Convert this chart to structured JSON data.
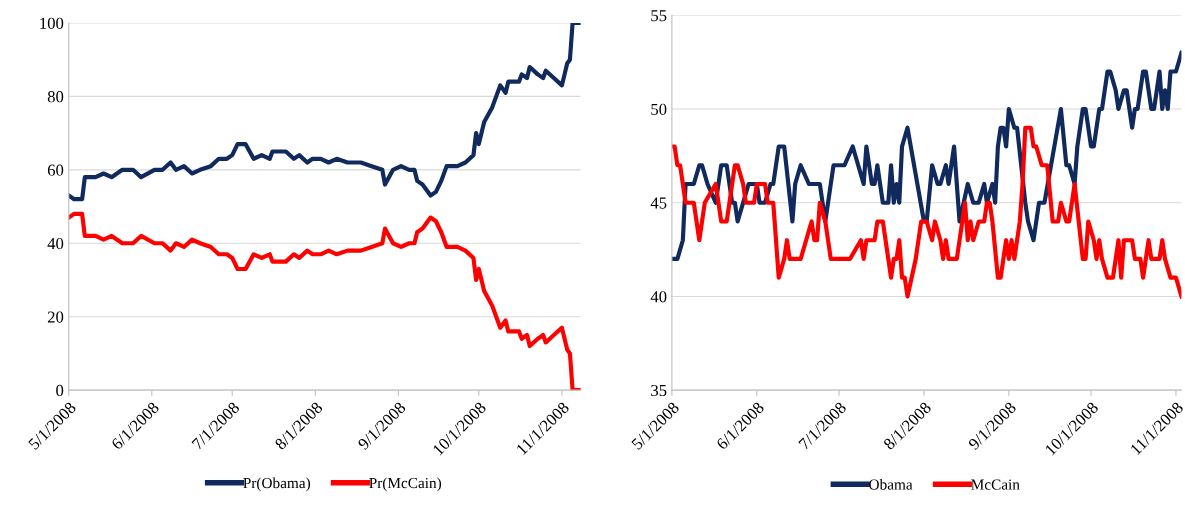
{
  "chart_data": [
    {
      "type": "line",
      "legend": "bottom",
      "grid": "y",
      "line_style": "solid",
      "marker": "none",
      "xlim": [
        "2008-05-01",
        "2008-11-08"
      ],
      "ylim": [
        0,
        100
      ],
      "yticks": [
        0,
        20,
        40,
        60,
        80,
        100
      ],
      "xticks": [
        {
          "value": "2008-05-01",
          "label": "5/1/2008"
        },
        {
          "value": "2008-06-01",
          "label": "6/1/2008"
        },
        {
          "value": "2008-07-01",
          "label": "7/1/2008"
        },
        {
          "value": "2008-08-01",
          "label": "8/1/2008"
        },
        {
          "value": "2008-09-01",
          "label": "9/1/2008"
        },
        {
          "value": "2008-10-01",
          "label": "10/1/2008"
        },
        {
          "value": "2008-11-01",
          "label": "11/1/2008"
        }
      ],
      "x": [
        "2008-05-01",
        "2008-05-03",
        "2008-05-05",
        "2008-05-06",
        "2008-05-07",
        "2008-05-10",
        "2008-05-11",
        "2008-05-14",
        "2008-05-17",
        "2008-05-21",
        "2008-05-25",
        "2008-05-28",
        "2008-06-02",
        "2008-06-05",
        "2008-06-08",
        "2008-06-10",
        "2008-06-13",
        "2008-06-16",
        "2008-06-19",
        "2008-06-23",
        "2008-06-26",
        "2008-06-29",
        "2008-07-01",
        "2008-07-03",
        "2008-07-06",
        "2008-07-09",
        "2008-07-12",
        "2008-07-15",
        "2008-07-16",
        "2008-07-21",
        "2008-07-24",
        "2008-07-26",
        "2008-07-29",
        "2008-07-31",
        "2008-08-03",
        "2008-08-06",
        "2008-08-09",
        "2008-08-13",
        "2008-08-18",
        "2008-08-22",
        "2008-08-26",
        "2008-08-27",
        "2008-08-30",
        "2008-09-02",
        "2008-09-05",
        "2008-09-07",
        "2008-09-08",
        "2008-09-10",
        "2008-09-13",
        "2008-09-15",
        "2008-09-17",
        "2008-09-19",
        "2008-09-23",
        "2008-09-26",
        "2008-09-29",
        "2008-09-30",
        "2008-10-01",
        "2008-10-03",
        "2008-10-06",
        "2008-10-09",
        "2008-10-11",
        "2008-10-12",
        "2008-10-16",
        "2008-10-17",
        "2008-10-19",
        "2008-10-20",
        "2008-10-23",
        "2008-10-25",
        "2008-10-26",
        "2008-10-29",
        "2008-11-01",
        "2008-11-03",
        "2008-11-04",
        "2008-11-05",
        "2008-11-08"
      ],
      "series": [
        {
          "name": "Pr(Obama)",
          "color": "#102a5e",
          "values": [
            53,
            52,
            52,
            52,
            58,
            58,
            58,
            59,
            58,
            60,
            60,
            58,
            60,
            60,
            62,
            60,
            61,
            59,
            60,
            61,
            63,
            63,
            64,
            67,
            67,
            63,
            64,
            63,
            65,
            65,
            63,
            64,
            62,
            63,
            63,
            62,
            63,
            62,
            62,
            61,
            60,
            56,
            60,
            61,
            60,
            60,
            57,
            56,
            53,
            54,
            57,
            61,
            61,
            62,
            64,
            70,
            67,
            73,
            77,
            83,
            81,
            84,
            84,
            86,
            85,
            88,
            86,
            85,
            87,
            85,
            83,
            89,
            90,
            100,
            100
          ]
        },
        {
          "name": "Pr(McCain)",
          "color": "#ff0000",
          "values": [
            47,
            48,
            48,
            48,
            42,
            42,
            42,
            41,
            42,
            40,
            40,
            42,
            40,
            40,
            38,
            40,
            39,
            41,
            40,
            39,
            37,
            37,
            36,
            33,
            33,
            37,
            36,
            37,
            35,
            35,
            37,
            36,
            38,
            37,
            37,
            38,
            37,
            38,
            38,
            39,
            40,
            44,
            40,
            39,
            40,
            40,
            43,
            44,
            47,
            46,
            43,
            39,
            39,
            38,
            36,
            30,
            33,
            27,
            23,
            17,
            19,
            16,
            16,
            14,
            15,
            12,
            14,
            15,
            13,
            15,
            17,
            11,
            10,
            0,
            0
          ]
        }
      ]
    },
    {
      "type": "line",
      "legend": "bottom",
      "grid": "y",
      "line_style": "solid",
      "marker": "none",
      "xlim": [
        "2008-05-01",
        "2008-11-03"
      ],
      "ylim": [
        35,
        55
      ],
      "yticks": [
        35,
        40,
        45,
        50,
        55
      ],
      "xticks": [
        {
          "value": "2008-05-01",
          "label": "5/1/2008"
        },
        {
          "value": "2008-06-01",
          "label": "6/1/2008"
        },
        {
          "value": "2008-07-01",
          "label": "7/1/2008"
        },
        {
          "value": "2008-08-01",
          "label": "8/1/2008"
        },
        {
          "value": "2008-09-01",
          "label": "9/1/2008"
        },
        {
          "value": "2008-10-01",
          "label": "10/1/2008"
        },
        {
          "value": "2008-11-01",
          "label": "11/1/2008"
        }
      ],
      "series": [
        {
          "name": "Obama",
          "color": "#102a5e",
          "x": [
            "2008-05-01",
            "2008-05-03",
            "2008-05-05",
            "2008-05-06",
            "2008-05-09",
            "2008-05-11",
            "2008-05-12",
            "2008-05-14",
            "2008-05-17",
            "2008-05-19",
            "2008-05-21",
            "2008-05-23",
            "2008-05-24",
            "2008-05-25",
            "2008-05-27",
            "2008-05-29",
            "2008-06-01",
            "2008-06-02",
            "2008-06-04",
            "2008-06-06",
            "2008-06-07",
            "2008-06-09",
            "2008-06-11",
            "2008-06-14",
            "2008-06-15",
            "2008-06-17",
            "2008-06-20",
            "2008-06-24",
            "2008-06-26",
            "2008-06-29",
            "2008-07-03",
            "2008-07-06",
            "2008-07-10",
            "2008-07-11",
            "2008-07-13",
            "2008-07-14",
            "2008-07-15",
            "2008-07-17",
            "2008-07-19",
            "2008-07-20",
            "2008-07-21",
            "2008-07-22",
            "2008-07-23",
            "2008-07-24",
            "2008-07-26",
            "2008-08-01",
            "2008-08-02",
            "2008-08-04",
            "2008-08-06",
            "2008-08-07",
            "2008-08-09",
            "2008-08-10",
            "2008-08-11",
            "2008-08-12",
            "2008-08-14",
            "2008-08-17",
            "2008-08-19",
            "2008-08-21",
            "2008-08-23",
            "2008-08-24",
            "2008-08-26",
            "2008-08-27",
            "2008-08-28",
            "2008-08-29",
            "2008-08-30",
            "2008-08-31",
            "2008-09-01",
            "2008-09-03",
            "2008-09-04",
            "2008-09-07",
            "2008-09-08",
            "2008-09-10",
            "2008-09-12",
            "2008-09-14",
            "2008-09-20",
            "2008-09-22",
            "2008-09-23",
            "2008-09-25",
            "2008-09-26",
            "2008-09-28",
            "2008-09-29",
            "2008-10-01",
            "2008-10-02",
            "2008-10-04",
            "2008-10-05",
            "2008-10-07",
            "2008-10-08",
            "2008-10-10",
            "2008-10-11",
            "2008-10-13",
            "2008-10-14",
            "2008-10-16",
            "2008-10-17",
            "2008-10-18",
            "2008-10-20",
            "2008-10-21",
            "2008-10-23",
            "2008-10-24",
            "2008-10-25",
            "2008-10-26",
            "2008-10-27",
            "2008-10-28",
            "2008-10-29",
            "2008-10-30",
            "2008-11-01",
            "2008-11-03"
          ],
          "values": [
            42,
            42,
            43,
            46,
            46,
            47,
            47,
            46,
            45,
            47,
            47,
            45,
            45,
            44,
            45,
            46,
            46,
            45,
            45,
            46,
            46,
            48,
            48,
            44,
            46,
            47,
            46,
            46,
            44,
            47,
            47,
            48,
            46,
            48,
            46,
            46,
            47,
            45,
            45,
            47,
            45,
            46,
            45,
            48,
            49,
            44,
            44,
            47,
            46,
            46,
            47,
            46,
            47,
            48,
            44,
            46,
            45,
            45,
            46,
            45,
            46,
            45,
            48,
            49,
            49,
            48,
            50,
            49,
            49,
            45,
            44,
            43,
            45,
            45,
            50,
            47,
            47,
            46,
            48,
            50,
            50,
            48,
            48,
            50,
            50,
            52,
            52,
            51,
            50,
            51,
            51,
            49,
            50,
            50,
            52,
            52,
            50,
            50,
            51,
            52,
            50,
            51,
            50,
            52,
            52,
            53
          ]
        },
        {
          "name": "McCain",
          "color": "#ff0000",
          "x": [
            "2008-05-01",
            "2008-05-02",
            "2008-05-03",
            "2008-05-04",
            "2008-05-06",
            "2008-05-09",
            "2008-05-11",
            "2008-05-13",
            "2008-05-17",
            "2008-05-19",
            "2008-05-21",
            "2008-05-23",
            "2008-05-24",
            "2008-05-25",
            "2008-05-27",
            "2008-05-28",
            "2008-05-31",
            "2008-06-01",
            "2008-06-04",
            "2008-06-05",
            "2008-06-07",
            "2008-06-08",
            "2008-06-09",
            "2008-06-11",
            "2008-06-12",
            "2008-06-13",
            "2008-06-17",
            "2008-06-21",
            "2008-06-22",
            "2008-06-23",
            "2008-06-24",
            "2008-06-26",
            "2008-06-28",
            "2008-07-05",
            "2008-07-09",
            "2008-07-10",
            "2008-07-11",
            "2008-07-14",
            "2008-07-15",
            "2008-07-17",
            "2008-07-20",
            "2008-07-21",
            "2008-07-22",
            "2008-07-23",
            "2008-07-24",
            "2008-07-25",
            "2008-07-26",
            "2008-07-29",
            "2008-07-31",
            "2008-08-02",
            "2008-08-04",
            "2008-08-05",
            "2008-08-07",
            "2008-08-08",
            "2008-08-09",
            "2008-08-10",
            "2008-08-13",
            "2008-08-15",
            "2008-08-16",
            "2008-08-17",
            "2008-08-18",
            "2008-08-19",
            "2008-08-21",
            "2008-08-23",
            "2008-08-24",
            "2008-08-25",
            "2008-08-26",
            "2008-08-28",
            "2008-08-29",
            "2008-08-31",
            "2008-09-01",
            "2008-09-02",
            "2008-09-03",
            "2008-09-05",
            "2008-09-06",
            "2008-09-07",
            "2008-09-09",
            "2008-09-10",
            "2008-09-11",
            "2008-09-13",
            "2008-09-15",
            "2008-09-17",
            "2008-09-19",
            "2008-09-20",
            "2008-09-22",
            "2008-09-23",
            "2008-09-25",
            "2008-09-28",
            "2008-09-29",
            "2008-09-30",
            "2008-10-02",
            "2008-10-03",
            "2008-10-04",
            "2008-10-05",
            "2008-10-07",
            "2008-10-09",
            "2008-10-11",
            "2008-10-12",
            "2008-10-13",
            "2008-10-16",
            "2008-10-17",
            "2008-10-19",
            "2008-10-20",
            "2008-10-22",
            "2008-10-23",
            "2008-10-26",
            "2008-10-27",
            "2008-10-28",
            "2008-10-30",
            "2008-11-01",
            "2008-11-03"
          ],
          "values": [
            48,
            48,
            47,
            47,
            45,
            45,
            43,
            45,
            46,
            44,
            44,
            46,
            47,
            47,
            46,
            45,
            45,
            46,
            46,
            45,
            45,
            43,
            41,
            42,
            43,
            42,
            42,
            44,
            43,
            43,
            45,
            44,
            42,
            42,
            43,
            42,
            43,
            43,
            44,
            44,
            41,
            42,
            42,
            43,
            41,
            41,
            40,
            42,
            44,
            44,
            43,
            44,
            43,
            42,
            43,
            42,
            42,
            44,
            45,
            43,
            44,
            43,
            44,
            44,
            45,
            45,
            44,
            41,
            41,
            43,
            42,
            43,
            42,
            44,
            46,
            49,
            49,
            48,
            48,
            47,
            47,
            44,
            44,
            45,
            44,
            44,
            46,
            42,
            42,
            44,
            43,
            42,
            43,
            42,
            41,
            41,
            43,
            41,
            43,
            43,
            42,
            42,
            41,
            43,
            42,
            42,
            43,
            42,
            41,
            41,
            40
          ]
        }
      ]
    }
  ]
}
